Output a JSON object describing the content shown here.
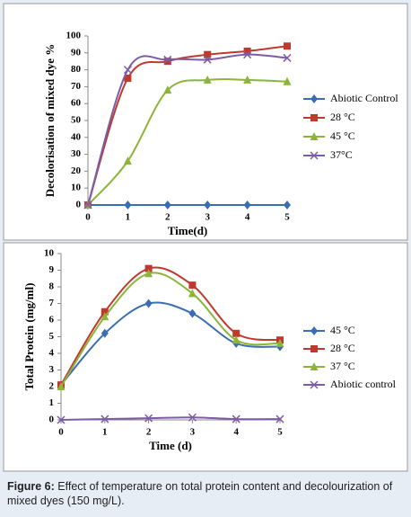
{
  "chart_data": [
    {
      "type": "line",
      "y_label": "Decolorisation of mixed dye %",
      "x_label": "Time(d)",
      "x": [
        0,
        1,
        2,
        3,
        4,
        5
      ],
      "xlim": [
        0,
        5
      ],
      "xticks": [
        0,
        1,
        2,
        3,
        4,
        5
      ],
      "ylim": [
        0,
        100
      ],
      "yticks": [
        0,
        10,
        20,
        30,
        40,
        50,
        60,
        70,
        80,
        90,
        100
      ],
      "legend": "right",
      "series": [
        {
          "name": "Abiotic Control",
          "color": "#3b6db3",
          "marker": "diamond",
          "values": [
            0,
            0,
            0,
            0,
            0,
            0
          ]
        },
        {
          "name": "28 °C",
          "color": "#c0392f",
          "marker": "square",
          "values": [
            0,
            75,
            85,
            89,
            91,
            94
          ]
        },
        {
          "name": "45 °C",
          "color": "#8cb43a",
          "marker": "triangle",
          "values": [
            0,
            26,
            68,
            74,
            74,
            73
          ]
        },
        {
          "name": "37°C",
          "color": "#7d5ca6",
          "marker": "x",
          "values": [
            0,
            80,
            86,
            86,
            89,
            87
          ]
        }
      ]
    },
    {
      "type": "line",
      "y_label": "Total Protein (mg/ml)",
      "x_label": "Time (d)",
      "x": [
        0,
        1,
        2,
        3,
        4,
        5
      ],
      "xlim": [
        0,
        5
      ],
      "xticks": [
        0,
        1,
        2,
        3,
        4,
        5
      ],
      "ylim": [
        0,
        10
      ],
      "yticks": [
        0,
        1,
        2,
        3,
        4,
        5,
        6,
        7,
        8,
        9,
        10
      ],
      "legend": "right",
      "series": [
        {
          "name": "45 °C",
          "color": "#3b6db3",
          "marker": "diamond",
          "values": [
            2.1,
            5.2,
            7.0,
            6.4,
            4.6,
            4.4
          ]
        },
        {
          "name": "28 °C",
          "color": "#c0392f",
          "marker": "square",
          "values": [
            2.1,
            6.5,
            9.1,
            8.1,
            5.2,
            4.8
          ]
        },
        {
          "name": "37 °C",
          "color": "#8cb43a",
          "marker": "triangle",
          "values": [
            2.0,
            6.2,
            8.8,
            7.6,
            4.8,
            4.6
          ]
        },
        {
          "name": "Abiotic control",
          "color": "#7d5ca6",
          "marker": "x",
          "values": [
            0,
            0.05,
            0.1,
            0.15,
            0.05,
            0.05
          ]
        }
      ]
    }
  ],
  "caption": {
    "label": "Figure 6:",
    "text": "Effect of temperature on total protein content and decolourization of mixed dyes (150 mg/L)."
  }
}
